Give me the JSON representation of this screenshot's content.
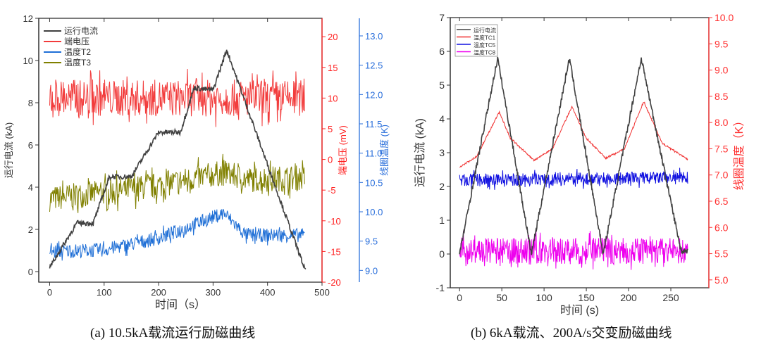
{
  "captions": {
    "a": "(a) 10.5kA载流运行励磁曲线",
    "b": "(b) 6kA载流、200A/s交变励磁曲线"
  },
  "chart_data": [
    {
      "type": "line",
      "xlabel": "时间（s）",
      "xlim": [
        -20,
        500
      ],
      "xticks": [
        0,
        100,
        200,
        300,
        400,
        500
      ],
      "axes": [
        {
          "id": "left",
          "label": "运行电流 (kA)",
          "color": "#333333",
          "lim": [
            -0.5,
            12
          ],
          "ticks": [
            0,
            2,
            4,
            6,
            8,
            10,
            12
          ]
        },
        {
          "id": "right1",
          "label": "端电压 (mV)",
          "color": "#ff2020",
          "lim": [
            -20,
            23
          ],
          "ticks": [
            -20,
            -15,
            -10,
            -5,
            0,
            5,
            10,
            15,
            20
          ]
        },
        {
          "id": "right2",
          "label": "线圈温度 (K)",
          "color": "#2a6fdb",
          "lim": [
            8.8,
            13.3
          ],
          "ticks": [
            9.0,
            9.5,
            10.0,
            10.5,
            11.0,
            11.5,
            12.0,
            12.5,
            13.0
          ],
          "decimals": 1
        }
      ],
      "legend": "top-left",
      "series": [
        {
          "name": "运行电流",
          "axis": "left",
          "color": "#404040",
          "x": [
            0,
            50,
            80,
            110,
            150,
            200,
            240,
            265,
            300,
            325,
            470
          ],
          "y": [
            0.2,
            2.3,
            2.3,
            4.5,
            4.5,
            6.6,
            6.6,
            8.7,
            8.6,
            10.5,
            0.0
          ]
        },
        {
          "name": "端电压",
          "axis": "right1",
          "color": "#f23c3c",
          "x": [
            0,
            468
          ],
          "y": [
            10,
            10
          ]
        },
        {
          "name": "温度T2",
          "axis": "right2",
          "color": "#1f6fd6",
          "x": [
            0,
            100,
            200,
            320,
            360,
            468
          ],
          "y": [
            9.32,
            9.35,
            9.55,
            9.98,
            9.6,
            9.6
          ]
        },
        {
          "name": "温度T3",
          "axis": "right2",
          "color": "#808000",
          "x": [
            0,
            100,
            200,
            320,
            360,
            468
          ],
          "y": [
            10.22,
            10.33,
            10.45,
            10.67,
            10.55,
            10.58
          ]
        }
      ]
    },
    {
      "type": "line",
      "xlabel": "时间 (s)",
      "xlim": [
        -11,
        295
      ],
      "xticks": [
        0,
        50,
        100,
        150,
        200,
        250
      ],
      "axes": [
        {
          "id": "left",
          "label": "运行电流 (kA)",
          "color": "#333333",
          "lim": [
            -1,
            7
          ],
          "ticks": [
            -1,
            0,
            1,
            2,
            3,
            4,
            5,
            6,
            7
          ]
        },
        {
          "id": "right1",
          "label": "线圈温度（K）",
          "color": "#ff3030",
          "lim": [
            4.85,
            10.0
          ],
          "ticks": [
            5.0,
            5.5,
            6.0,
            6.5,
            7.0,
            7.5,
            8.0,
            8.5,
            9.0,
            9.5,
            10.0
          ],
          "decimals": 1
        }
      ],
      "legend": "top-left",
      "series": [
        {
          "name": "运行电流",
          "axis": "left",
          "color": "#404040",
          "x": [
            0,
            45,
            85,
            130,
            170,
            215,
            262,
            270
          ],
          "y": [
            0.0,
            5.8,
            0.0,
            5.8,
            0.0,
            5.8,
            0.1,
            0.1
          ]
        },
        {
          "name": "温度TC1",
          "axis": "right1",
          "color": "#f03030",
          "x": [
            0,
            20,
            47,
            60,
            88,
            110,
            133,
            150,
            173,
            195,
            218,
            240,
            270
          ],
          "y": [
            7.15,
            7.35,
            8.2,
            7.7,
            7.28,
            7.5,
            8.3,
            7.7,
            7.32,
            7.5,
            8.4,
            7.6,
            7.3
          ]
        },
        {
          "name": "温度TC5",
          "axis": "right1",
          "color": "#1010e0",
          "x": [
            0,
            270
          ],
          "y": [
            6.9,
            6.95
          ]
        },
        {
          "name": "温度TC8",
          "axis": "right1",
          "color": "#ee00ee",
          "x": [
            0,
            270
          ],
          "y": [
            5.55,
            5.55
          ]
        }
      ]
    }
  ]
}
